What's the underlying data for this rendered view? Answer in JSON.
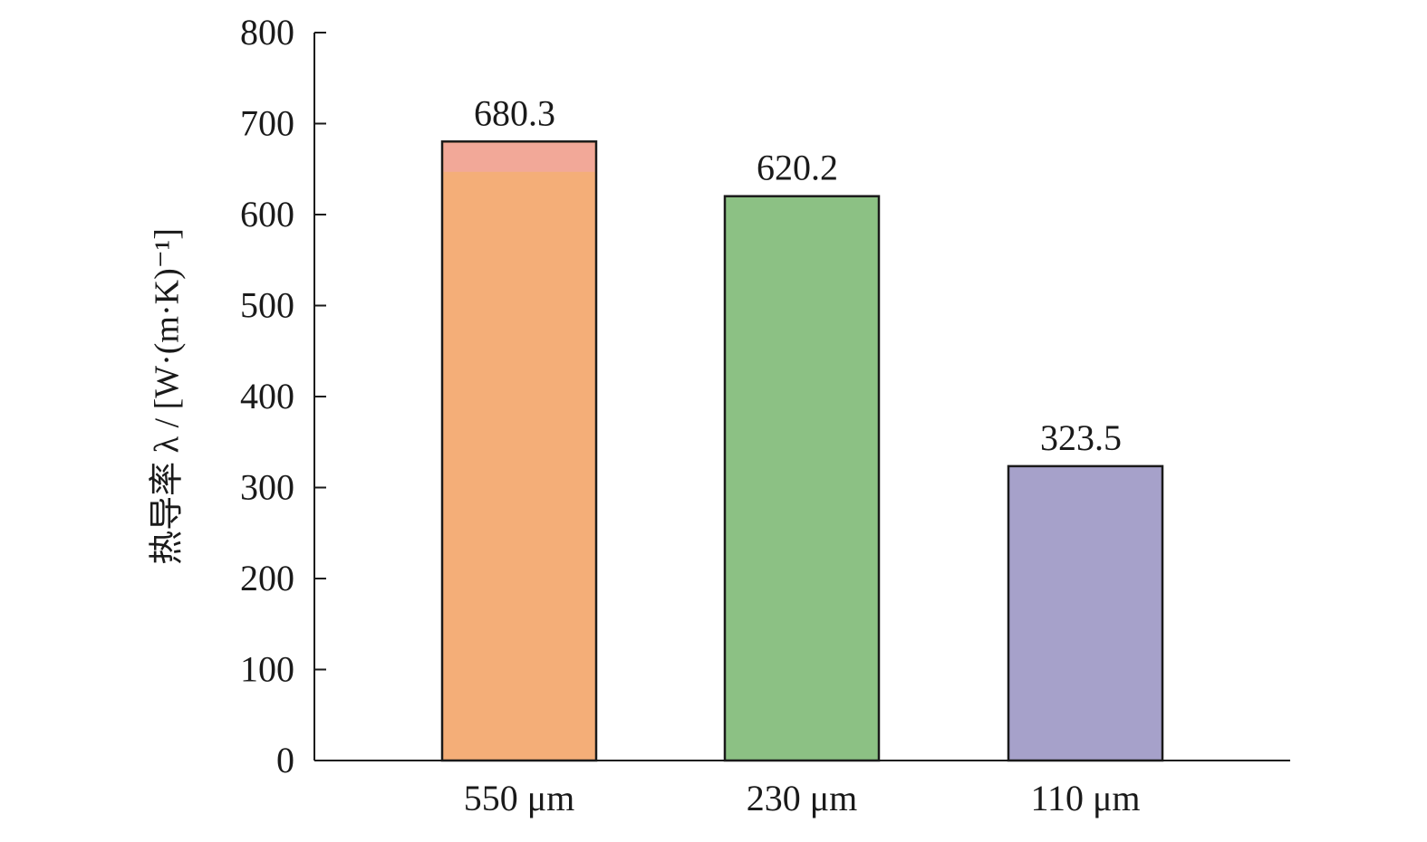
{
  "chart_data": {
    "type": "bar",
    "categories": [
      "550 μm",
      "230 μm",
      "110 μm"
    ],
    "values": [
      680.3,
      620.2,
      323.5
    ],
    "data_labels": [
      "680.3",
      "620.2",
      "323.5"
    ],
    "colors": [
      "#F4AE78",
      "#8CC184",
      "#A6A1CA"
    ],
    "top_accent_color": "#F2A898",
    "xlabel": "",
    "ylabel": "热导率 λ / [W·(m·K)⁻¹]",
    "ylim": [
      0,
      800
    ],
    "yticks": [
      0,
      100,
      200,
      300,
      400,
      500,
      600,
      700,
      800
    ],
    "ytick_labels": [
      "0",
      "100",
      "200",
      "300",
      "400",
      "500",
      "600",
      "700",
      "800"
    ],
    "grid": false,
    "legend": "none"
  }
}
